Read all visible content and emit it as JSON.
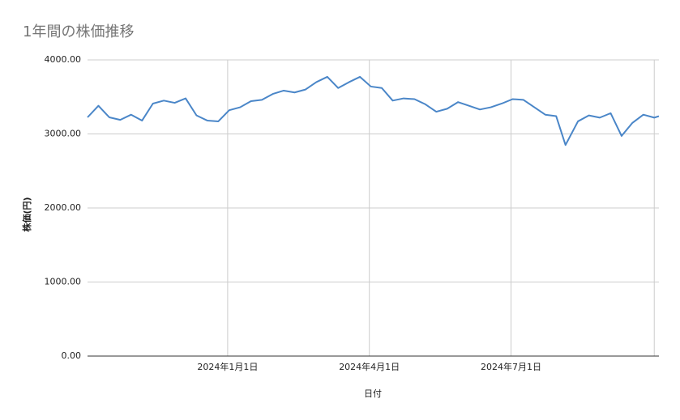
{
  "chart_data": {
    "type": "line",
    "title": "1年間の株価推移",
    "x_label": "日付",
    "y_label": "株価(円)",
    "x": [
      "2023-10-03",
      "2023-10-10",
      "2023-10-17",
      "2023-10-24",
      "2023-10-31",
      "2023-11-07",
      "2023-11-14",
      "2023-11-21",
      "2023-11-28",
      "2023-12-05",
      "2023-12-12",
      "2023-12-19",
      "2023-12-26",
      "2024-01-02",
      "2024-01-09",
      "2024-01-16",
      "2024-01-23",
      "2024-01-30",
      "2024-02-06",
      "2024-02-13",
      "2024-02-20",
      "2024-02-27",
      "2024-03-05",
      "2024-03-12",
      "2024-03-19",
      "2024-03-26",
      "2024-04-02",
      "2024-04-09",
      "2024-04-16",
      "2024-04-23",
      "2024-04-30",
      "2024-05-07",
      "2024-05-14",
      "2024-05-21",
      "2024-05-28",
      "2024-06-04",
      "2024-06-11",
      "2024-06-18",
      "2024-06-25",
      "2024-07-02",
      "2024-07-09",
      "2024-07-16",
      "2024-07-23",
      "2024-07-30",
      "2024-08-05",
      "2024-08-13",
      "2024-08-20",
      "2024-08-27",
      "2024-09-03",
      "2024-09-10",
      "2024-09-17",
      "2024-09-24",
      "2024-10-01",
      "2024-10-04"
    ],
    "values": [
      3224,
      3380,
      3224,
      3190,
      3260,
      3180,
      3410,
      3450,
      3420,
      3480,
      3250,
      3180,
      3170,
      3320,
      3360,
      3443,
      3460,
      3540,
      3585,
      3560,
      3600,
      3700,
      3771,
      3620,
      3700,
      3771,
      3640,
      3620,
      3450,
      3480,
      3470,
      3400,
      3300,
      3340,
      3430,
      3380,
      3330,
      3360,
      3410,
      3470,
      3460,
      3360,
      3260,
      3240,
      2850,
      3170,
      3250,
      3220,
      3280,
      2973,
      3150,
      3260,
      3220,
      3240
    ],
    "color": "#4a86c8",
    "xlim": [
      "2023-10-03",
      "2024-10-04"
    ],
    "xticks": [
      {
        "value": "2024-01-01",
        "label": "2024年1月1日"
      },
      {
        "value": "2024-04-01",
        "label": "2024年4月1日"
      },
      {
        "value": "2024-07-01",
        "label": "2024年7月1日"
      },
      {
        "value": "2024-10-01",
        "label": null
      }
    ],
    "ylim": [
      0,
      4000
    ],
    "yticks": [
      {
        "value": 0,
        "label": "0.00"
      },
      {
        "value": 1000,
        "label": "1000.00"
      },
      {
        "value": 2000,
        "label": "2000.00"
      },
      {
        "value": 3000,
        "label": "3000.00"
      },
      {
        "value": 4000,
        "label": "4000.00"
      }
    ],
    "grid": true
  }
}
